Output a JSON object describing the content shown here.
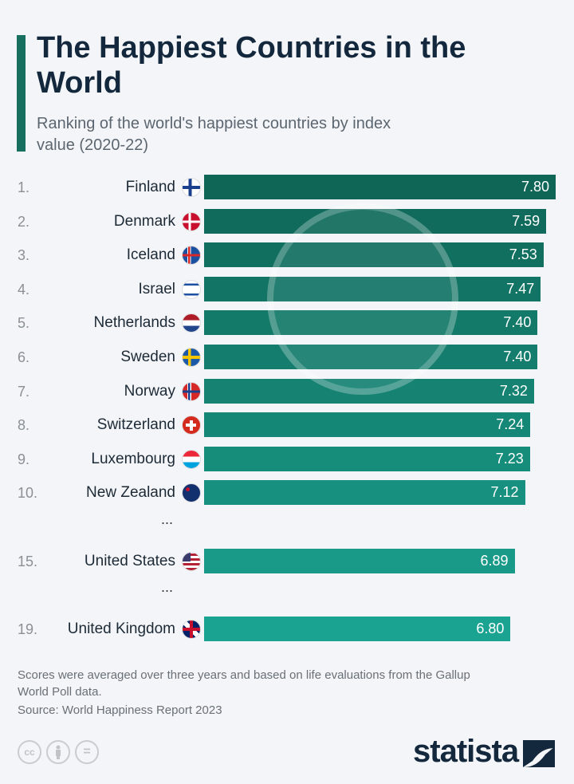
{
  "title": "The Happiest Countries in the World",
  "subtitle": "Ranking of the world's happiest countries by index value (2020-22)",
  "chart_data": {
    "type": "bar",
    "orientation": "horizontal",
    "title": "The Happiest Countries in the World",
    "subtitle": "Ranking of the world's happiest countries by index value (2020-22)",
    "xlim": [
      0,
      7.8
    ],
    "grid": false,
    "rows": [
      {
        "rank": "1.",
        "country": "Finland",
        "value": 7.8,
        "label": "7.80",
        "flag": "finland-flag"
      },
      {
        "rank": "2.",
        "country": "Denmark",
        "value": 7.59,
        "label": "7.59",
        "flag": "denmark-flag"
      },
      {
        "rank": "3.",
        "country": "Iceland",
        "value": 7.53,
        "label": "7.53",
        "flag": "iceland-flag"
      },
      {
        "rank": "4.",
        "country": "Israel",
        "value": 7.47,
        "label": "7.47",
        "flag": "israel-flag"
      },
      {
        "rank": "5.",
        "country": "Netherlands",
        "value": 7.4,
        "label": "7.40",
        "flag": "netherlands-flag"
      },
      {
        "rank": "6.",
        "country": "Sweden",
        "value": 7.4,
        "label": "7.40",
        "flag": "sweden-flag"
      },
      {
        "rank": "7.",
        "country": "Norway",
        "value": 7.32,
        "label": "7.32",
        "flag": "norway-flag"
      },
      {
        "rank": "8.",
        "country": "Switzerland",
        "value": 7.24,
        "label": "7.24",
        "flag": "switzerland-flag"
      },
      {
        "rank": "9.",
        "country": "Luxembourg",
        "value": 7.23,
        "label": "7.23",
        "flag": "luxembourg-flag"
      },
      {
        "rank": "10.",
        "country": "New Zealand",
        "value": 7.12,
        "label": "7.12",
        "flag": "new-zealand-flag"
      },
      {
        "ellipsis": "..."
      },
      {
        "rank": "15.",
        "country": "United States",
        "value": 6.89,
        "label": "6.89",
        "flag": "usa-flag"
      },
      {
        "ellipsis": "..."
      },
      {
        "rank": "19.",
        "country": "United Kingdom",
        "value": 6.8,
        "label": "6.80",
        "flag": "uk-flag"
      }
    ],
    "colors": {
      "top": "#0f6657",
      "bottom": "#1ba392"
    }
  },
  "footer": {
    "note": "Scores were averaged over three years and based on life evaluations from the Gallup World Poll data.",
    "source": "Source: World Happiness Report 2023",
    "license_icons": [
      "cc-icon",
      "attribution-icon",
      "no-derivatives-icon"
    ],
    "cc_text": "cc",
    "nd_text": "=",
    "logo": "statista"
  }
}
